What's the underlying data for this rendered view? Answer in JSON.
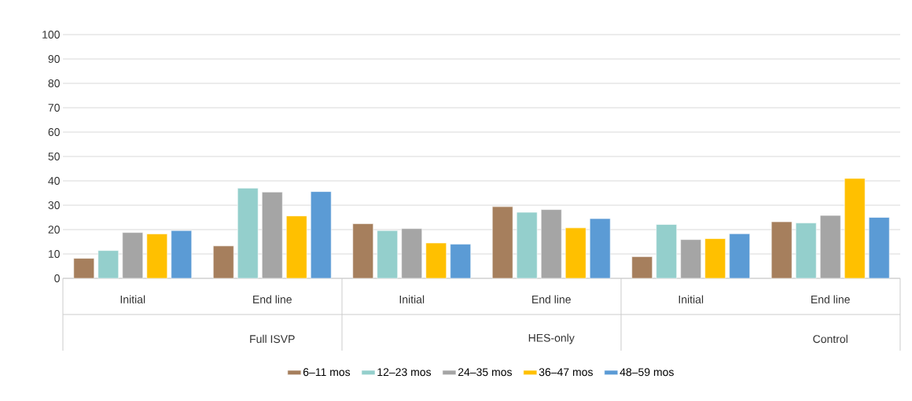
{
  "chart_data": {
    "type": "bar",
    "categories": [
      "Initial",
      "End line",
      "Initial",
      "End line",
      "Initial",
      "End line"
    ],
    "annotations": [
      "Full ISVP",
      "HES-only",
      "Control"
    ],
    "series": [
      {
        "name": "6–11 mos",
        "color": "#a67f5d",
        "values": [
          8.2,
          13.3,
          22.4,
          29.4,
          8.9,
          23.2
        ]
      },
      {
        "name": "12–23 mos",
        "color": "#94cfcc",
        "values": [
          11.4,
          37,
          19.6,
          27.1,
          22.1,
          22.7
        ]
      },
      {
        "name": "24–35 mos",
        "color": "#a5a5a5",
        "values": [
          18.8,
          35.4,
          20.4,
          28.2,
          15.9,
          25.8
        ]
      },
      {
        "name": "36–47 mos",
        "color": "#ffc000",
        "values": [
          18.2,
          25.6,
          14.5,
          20.7,
          16.3,
          41
        ]
      },
      {
        "name": "48–59 mos",
        "color": "#5b9bd5",
        "values": [
          19.6,
          35.6,
          14,
          24.5,
          18.3,
          25
        ]
      }
    ],
    "ylim": [
      0,
      100
    ],
    "yticks": [
      0,
      10,
      20,
      30,
      40,
      50,
      60,
      70,
      80,
      90,
      100
    ],
    "grid": "y",
    "legend": "bottom"
  }
}
